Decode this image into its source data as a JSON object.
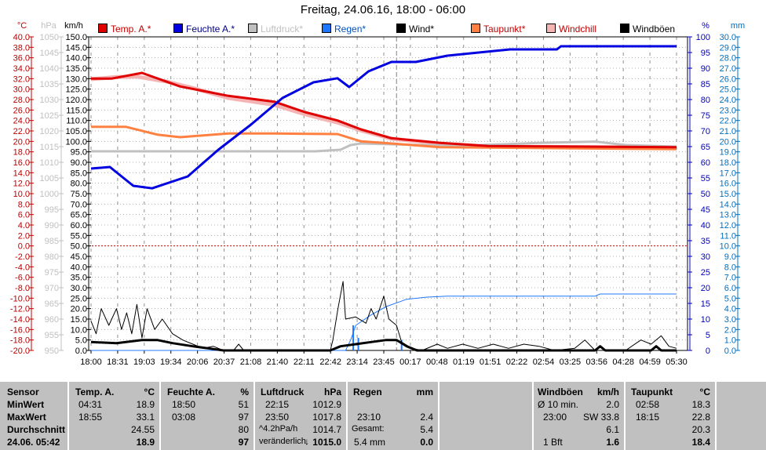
{
  "title": "Freitag, 24.06.16, 18:00 - 06:00",
  "legend": [
    {
      "label": "Temp. A.*",
      "swatch": "#e00000",
      "text": "#c00000"
    },
    {
      "label": "Feuchte A.*",
      "swatch": "#0000e0",
      "text": "#000080"
    },
    {
      "label": "Luftdruck*",
      "swatch": "#c0c0c0",
      "text": "#c0c0c0"
    },
    {
      "label": "Regen*",
      "swatch": "#1e78ff",
      "text": "#0050c0"
    },
    {
      "label": "Wind*",
      "swatch": "#000000",
      "text": "#000000"
    },
    {
      "label": "Taupunkt*",
      "swatch": "#ff8040",
      "text": "#c00000"
    },
    {
      "label": "Windchill",
      "swatch": "#f4b4b4",
      "text": "#c00000"
    },
    {
      "label": "Windböen",
      "swatch": "#000000",
      "text": "#000000"
    }
  ],
  "chart_data": {
    "type": "line",
    "title": "Freitag, 24.06.16, 18:00 - 06:00",
    "axes": {
      "celsius": {
        "unit": "°C",
        "range": [
          -20,
          40
        ],
        "step": 2,
        "color": "#c00000"
      },
      "hpa": {
        "unit": "hPa",
        "range": [
          950,
          1050
        ],
        "step": 5,
        "color": "#c0c0c0"
      },
      "kmh": {
        "unit": "km/h",
        "range": [
          0,
          150
        ],
        "step": 5,
        "color": "#000000"
      },
      "percent": {
        "unit": "%",
        "range": [
          0,
          100
        ],
        "step": 5,
        "color": "#0000c0"
      },
      "mm": {
        "unit": "mm",
        "range": [
          0,
          30
        ],
        "step": 1,
        "color": "#0070c0"
      }
    },
    "x_tick_labels": [
      "18:00",
      "18:31",
      "19:03",
      "19:34",
      "20:06",
      "20:37",
      "21:08",
      "21:40",
      "22:11",
      "22:42",
      "23:14",
      "23:45",
      "00:17",
      "00:48",
      "01:19",
      "01:51",
      "02:22",
      "02:54",
      "03:25",
      "03:56",
      "04:28",
      "04:59",
      "05:30"
    ],
    "x_unit": "hours since 18:00",
    "x_range": [
      0,
      11.5
    ],
    "grid": true,
    "series": [
      {
        "name": "Windchill",
        "axis": "celsius",
        "color": "#f4b4b4",
        "width": 5,
        "points": [
          [
            0,
            31.9
          ],
          [
            0.5,
            32.3
          ],
          [
            0.9,
            32.4
          ],
          [
            1.5,
            31.4
          ],
          [
            2.0,
            30.2
          ],
          [
            2.7,
            28.3
          ],
          [
            3.6,
            27.0
          ],
          [
            4.2,
            25.2
          ],
          [
            4.84,
            23.6
          ],
          [
            5.3,
            22.1
          ],
          [
            5.9,
            20.5
          ],
          [
            6.85,
            19.6
          ],
          [
            7.8,
            19.0
          ],
          [
            11.5,
            18.8
          ]
        ]
      },
      {
        "name": "Luftdruck",
        "axis": "hpa",
        "color": "#c0c0c0",
        "width": 3,
        "points": [
          [
            0,
            1013.5
          ],
          [
            4.4,
            1013.5
          ],
          [
            4.9,
            1014.0
          ],
          [
            5.1,
            1015.5
          ],
          [
            5.3,
            1016.0
          ],
          [
            7.2,
            1015.2
          ],
          [
            8.8,
            1016.2
          ],
          [
            9.9,
            1016.6
          ],
          [
            10.5,
            1015.5
          ],
          [
            11.5,
            1015.0
          ]
        ]
      },
      {
        "name": "Taupunkt",
        "axis": "celsius",
        "color": "#ff8040",
        "width": 3,
        "points": [
          [
            0,
            22.8
          ],
          [
            0.68,
            22.8
          ],
          [
            1.3,
            21.3
          ],
          [
            1.75,
            20.8
          ],
          [
            2.7,
            21.5
          ],
          [
            3.6,
            21.5
          ],
          [
            4.84,
            21.4
          ],
          [
            5.3,
            20.0
          ],
          [
            5.9,
            19.6
          ],
          [
            6.85,
            18.9
          ],
          [
            11.5,
            18.5
          ]
        ]
      },
      {
        "name": "Temp. A.",
        "axis": "celsius",
        "color": "#e00000",
        "width": 3,
        "points": [
          [
            0,
            32.0
          ],
          [
            0.4,
            32.0
          ],
          [
            1.0,
            33.1
          ],
          [
            1.75,
            30.5
          ],
          [
            2.7,
            28.7
          ],
          [
            3.6,
            27.6
          ],
          [
            4.2,
            25.6
          ],
          [
            4.84,
            24.0
          ],
          [
            5.3,
            22.3
          ],
          [
            5.9,
            20.6
          ],
          [
            6.85,
            19.7
          ],
          [
            7.8,
            19.1
          ],
          [
            11.5,
            18.9
          ]
        ]
      },
      {
        "name": "Feuchte A.",
        "axis": "percent",
        "color": "#0000e0",
        "width": 3,
        "points": [
          [
            0,
            58
          ],
          [
            0.37,
            58.5
          ],
          [
            0.83,
            52.5
          ],
          [
            1.2,
            51.7
          ],
          [
            1.9,
            55.5
          ],
          [
            2.5,
            64
          ],
          [
            3.14,
            72
          ],
          [
            3.76,
            80.5
          ],
          [
            4.37,
            85.5
          ],
          [
            4.84,
            86.8
          ],
          [
            5.07,
            84
          ],
          [
            5.45,
            89
          ],
          [
            5.9,
            92
          ],
          [
            6.38,
            92
          ],
          [
            7.0,
            94
          ],
          [
            8.23,
            96
          ],
          [
            9.15,
            96
          ],
          [
            9.23,
            97
          ],
          [
            11.5,
            97
          ]
        ]
      },
      {
        "name": "Regen",
        "axis": "mm",
        "color": "#1e78ff",
        "width": 1,
        "points": [
          [
            0,
            0
          ],
          [
            5.0,
            0
          ],
          [
            5.1,
            1.0
          ],
          [
            5.2,
            2.4
          ],
          [
            5.5,
            3.4
          ],
          [
            5.8,
            4.2
          ],
          [
            6.2,
            4.9
          ],
          [
            6.6,
            5.1
          ],
          [
            7.0,
            5.2
          ],
          [
            9.9,
            5.2
          ],
          [
            10.0,
            5.4
          ],
          [
            11.5,
            5.4
          ]
        ]
      },
      {
        "name": "Wind",
        "axis": "kmh",
        "color": "#000000",
        "width": 1,
        "points": [
          [
            0,
            14
          ],
          [
            0.1,
            8
          ],
          [
            0.2,
            20
          ],
          [
            0.35,
            12
          ],
          [
            0.5,
            20
          ],
          [
            0.6,
            10
          ],
          [
            0.7,
            18
          ],
          [
            0.8,
            8
          ],
          [
            0.9,
            22
          ],
          [
            1.0,
            6
          ],
          [
            1.1,
            20
          ],
          [
            1.25,
            10
          ],
          [
            1.4,
            15
          ],
          [
            1.6,
            8
          ],
          [
            1.8,
            5
          ],
          [
            2.0,
            3
          ],
          [
            2.2,
            1
          ],
          [
            2.4,
            2
          ],
          [
            2.6,
            0
          ],
          [
            2.8,
            0
          ],
          [
            2.9,
            3
          ],
          [
            3.0,
            0
          ],
          [
            4.7,
            0
          ],
          [
            4.75,
            5
          ],
          [
            4.85,
            20
          ],
          [
            4.95,
            33
          ],
          [
            5.0,
            15
          ],
          [
            5.2,
            16
          ],
          [
            5.4,
            13
          ],
          [
            5.5,
            20
          ],
          [
            5.6,
            15
          ],
          [
            5.75,
            26
          ],
          [
            5.85,
            15
          ],
          [
            6.0,
            12
          ],
          [
            6.1,
            4
          ],
          [
            6.3,
            1
          ],
          [
            6.5,
            0
          ],
          [
            6.8,
            3
          ],
          [
            7.0,
            1
          ],
          [
            7.3,
            3
          ],
          [
            7.6,
            1
          ],
          [
            7.9,
            3
          ],
          [
            8.2,
            1
          ],
          [
            8.5,
            3
          ],
          [
            8.8,
            2
          ],
          [
            9.1,
            0
          ],
          [
            9.5,
            1
          ],
          [
            9.7,
            5
          ],
          [
            9.9,
            0
          ],
          [
            10.5,
            0
          ],
          [
            10.8,
            5
          ],
          [
            11.0,
            3
          ],
          [
            11.2,
            7
          ],
          [
            11.35,
            2
          ],
          [
            11.5,
            1
          ]
        ]
      },
      {
        "name": "Windböen",
        "axis": "kmh",
        "color": "#000000",
        "width": 3,
        "points": [
          [
            0,
            4
          ],
          [
            0.5,
            3.5
          ],
          [
            1.0,
            5
          ],
          [
            1.3,
            5
          ],
          [
            1.6,
            3.5
          ],
          [
            2.0,
            2
          ],
          [
            2.3,
            1
          ],
          [
            2.6,
            0
          ],
          [
            4.7,
            0
          ],
          [
            4.9,
            2
          ],
          [
            5.2,
            3
          ],
          [
            5.5,
            4
          ],
          [
            5.8,
            5
          ],
          [
            6.0,
            5
          ],
          [
            6.2,
            2
          ],
          [
            6.4,
            0
          ],
          [
            9.9,
            0
          ],
          [
            10.0,
            2
          ],
          [
            10.1,
            0
          ],
          [
            11.0,
            0
          ],
          [
            11.1,
            2
          ],
          [
            11.2,
            0
          ],
          [
            11.5,
            0
          ]
        ]
      }
    ],
    "rain_bars_mm": [
      [
        5.15,
        2.4
      ],
      [
        5.25,
        1.2
      ],
      [
        6.1,
        1.0
      ]
    ],
    "reference_lines": [
      {
        "axis": "celsius",
        "value": 0,
        "color": "#e00000",
        "style": "dotted"
      },
      {
        "x": 6.0,
        "style": "dashed",
        "color": "#808080"
      }
    ]
  },
  "table": {
    "sensor": {
      "h": "Sensor",
      "min": "MinWert",
      "max": "MaxWert",
      "avg": "Durchschnitt",
      "cur": "24.06. 05:42"
    },
    "temp": {
      "h": "Temp. A.",
      "u": "°C",
      "min_t": "04:31",
      "min": "18.9",
      "max_t": "18:55",
      "max": "33.1",
      "avg": "24.55",
      "cur": "18.9"
    },
    "hum": {
      "h": "Feuchte A.",
      "u": "%",
      "min_t": "18:50",
      "min": "51",
      "max_t": "03:08",
      "max": "97",
      "avg": "80",
      "cur": "97"
    },
    "press": {
      "h": "Luftdruck",
      "u": "hPa",
      "min_t": "22:15",
      "min": "1012.9",
      "max_t": "23:50",
      "max": "1017.8",
      "avg_t": "^4.2hPa/h",
      "avg": "1014.7",
      "cur_t": "veränderlich",
      "cur_arrow": "↓",
      "cur": "1015.0"
    },
    "rain": {
      "h": "Regen",
      "u": "mm",
      "max_t": "23:10",
      "max": "2.4",
      "avg_t": "Gesamt:",
      "avg": "5.4",
      "cur_t": "5.4 mm",
      "cur": "0.0"
    },
    "gust": {
      "h": "Windböen",
      "u": "km/h",
      "min_t": "Ø 10 min.",
      "min": "2.0",
      "max_t": "23:00",
      "max": "SW 33.8",
      "avg": "6.1",
      "cur_t": "1 Bft",
      "cur": "1.6"
    },
    "dew": {
      "h": "Taupunkt",
      "u": "°C",
      "min_t": "02:58",
      "min": "18.3",
      "max_t": "18:15",
      "max": "22.8",
      "avg": "20.3",
      "cur": "18.4"
    }
  }
}
